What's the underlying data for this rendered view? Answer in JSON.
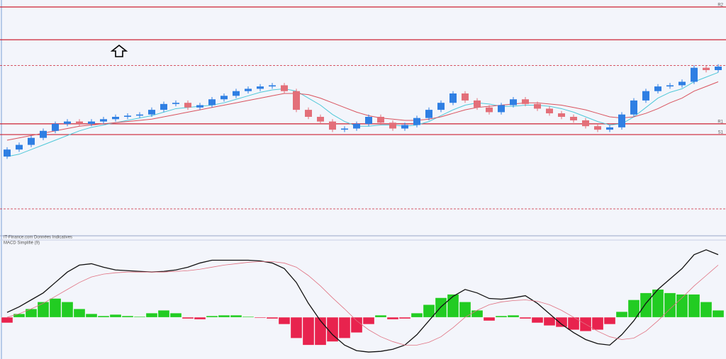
{
  "chart_data": [
    {
      "type": "candlestick",
      "open": [
        33,
        36,
        38,
        41,
        44,
        47,
        48,
        47,
        48,
        49,
        50,
        50.5,
        51,
        53,
        55.5,
        56,
        54,
        55,
        57.5,
        59,
        61,
        62,
        63,
        63.5,
        61,
        53,
        50,
        48,
        44.5,
        45,
        47,
        50,
        47.5,
        45,
        46.5,
        49.5,
        53,
        56,
        60,
        57,
        54,
        52,
        55,
        57.5,
        55.5,
        53.5,
        51.5,
        50,
        48.5,
        46,
        44.5,
        45.5,
        51,
        57,
        61,
        63,
        63.5,
        65,
        71,
        70
      ],
      "close": [
        36,
        38,
        41,
        44,
        47,
        48,
        47,
        48,
        49,
        50,
        50.5,
        51,
        53,
        55.5,
        56,
        54,
        55,
        57.5,
        59,
        61,
        62,
        63,
        63.5,
        61,
        53,
        50,
        48,
        44.5,
        45,
        47,
        50,
        47.5,
        45,
        46.5,
        49.5,
        53,
        56,
        60,
        57,
        54,
        52,
        55,
        57.5,
        55.5,
        53.5,
        51.5,
        50,
        48.5,
        46,
        44.5,
        45.5,
        51,
        57,
        61,
        63,
        63.5,
        65,
        71,
        70,
        71.5
      ],
      "high": [
        37,
        39,
        42,
        45,
        48,
        49,
        49,
        49,
        50,
        51,
        51.5,
        52,
        54,
        56.5,
        57,
        57,
        56,
        58.5,
        60,
        62,
        63,
        64,
        64.5,
        64.5,
        62,
        54,
        51,
        49,
        46,
        48,
        51,
        51,
        48.5,
        47.5,
        50.5,
        54,
        57,
        61,
        61,
        58,
        55,
        56,
        58.5,
        58.5,
        56.5,
        54.5,
        52.5,
        51,
        49.5,
        47,
        46.5,
        52,
        58,
        62,
        64,
        64.5,
        66,
        72,
        72,
        72.5
      ],
      "low": [
        32,
        35,
        37,
        40,
        43,
        46,
        46,
        46,
        47,
        48,
        49,
        49.5,
        50,
        52,
        54.5,
        53,
        53,
        54,
        56.5,
        58,
        60,
        61,
        62,
        60,
        52,
        49,
        47,
        43.5,
        43.5,
        44,
        46,
        46.5,
        44,
        44,
        45.5,
        48.5,
        52,
        55,
        56,
        53,
        51,
        51,
        54,
        54.5,
        52.5,
        50.5,
        49,
        47.5,
        45,
        43.5,
        43.5,
        44.5,
        50,
        56,
        60,
        62,
        62.5,
        64,
        69,
        69
      ],
      "up_color": "#2f7fe3",
      "down_color": "#e36f79",
      "overlays": [
        {
          "color": "#4fc8d8",
          "values": [
            33,
            34,
            36,
            38,
            40,
            42,
            44,
            45.5,
            46.5,
            47.5,
            48.5,
            49.5,
            50.5,
            52,
            53.5,
            54,
            54.5,
            55,
            56,
            57.5,
            59,
            60.5,
            61.5,
            62,
            61,
            58,
            55,
            51,
            48,
            46,
            46,
            46.5,
            46.5,
            46,
            46.5,
            48,
            50.5,
            53,
            55,
            56,
            55.5,
            54.5,
            54.5,
            55,
            55,
            54.5,
            53.5,
            52,
            50,
            48,
            46.5,
            47,
            50,
            54,
            58,
            60.5,
            62,
            65,
            67,
            69
          ]
        },
        {
          "color": "#d9535e",
          "values": [
            40,
            41,
            42,
            43,
            44,
            45,
            46,
            46.5,
            47,
            47.5,
            48,
            48.5,
            49,
            50,
            51,
            52,
            53,
            54,
            55,
            56,
            57,
            58,
            59,
            60,
            60,
            59.5,
            58,
            56,
            54,
            52,
            50.5,
            49.5,
            49,
            48.5,
            48.5,
            49,
            50,
            51.5,
            53,
            54,
            54.5,
            55,
            55.5,
            56,
            56,
            55.5,
            55,
            54,
            53,
            51.5,
            50,
            49.5,
            50,
            51.5,
            53.5,
            56,
            58,
            61,
            63,
            65
          ]
        }
      ],
      "levels": [
        97,
        83,
        72,
        47,
        42.4,
        10.6
      ],
      "level_labels": [
        "R2",
        null,
        null,
        "R1",
        "S1",
        null
      ],
      "level_styles": [
        "solid",
        "solid",
        "dashed",
        "solid",
        "solid",
        "dashed"
      ],
      "level_color": "#cc2233",
      "ylim": [
        0,
        100
      ],
      "source": "IT-Finance.com Données Indicatives"
    },
    {
      "type": "macd",
      "title": "MACD Simplifié (9)",
      "histogram": [
        -8,
        5,
        12,
        22,
        27,
        22,
        12,
        5,
        2,
        4,
        2,
        1,
        6,
        10,
        6,
        -2,
        -3,
        2,
        3,
        3,
        1,
        -1,
        -2,
        -10,
        -30,
        -40,
        -40,
        -35,
        -30,
        -22,
        -10,
        3,
        -3,
        -2,
        6,
        18,
        28,
        33,
        22,
        10,
        -5,
        2,
        3,
        -2,
        -8,
        -12,
        -14,
        -18,
        -20,
        -18,
        -10,
        8,
        25,
        35,
        40,
        35,
        33,
        33,
        22,
        10
      ],
      "positive_color": "#22cc22",
      "negative_color": "#e8234e",
      "series": [
        {
          "color": "#111111",
          "values": [
            7,
            15,
            25,
            35,
            50,
            65,
            75,
            77,
            72,
            68,
            67,
            66,
            65,
            66,
            68,
            72,
            78,
            82,
            82,
            82,
            82,
            81,
            78,
            70,
            50,
            20,
            -5,
            -25,
            -40,
            -48,
            -50,
            -49,
            -46,
            -40,
            -25,
            -5,
            15,
            30,
            40,
            35,
            27,
            26,
            28,
            31,
            20,
            5,
            -10,
            -22,
            -32,
            -38,
            -40,
            -25,
            -5,
            20,
            40,
            55,
            70,
            90,
            97,
            90
          ]
        },
        {
          "color": "#e07080",
          "values": [
            0,
            5,
            12,
            20,
            30,
            40,
            50,
            58,
            62,
            64,
            65,
            65,
            65,
            65,
            66,
            67,
            69,
            72,
            75,
            77,
            79,
            80,
            80,
            78,
            72,
            60,
            45,
            28,
            12,
            -5,
            -18,
            -28,
            -35,
            -40,
            -40,
            -36,
            -28,
            -15,
            0,
            10,
            18,
            22,
            24,
            25,
            23,
            18,
            10,
            0,
            -10,
            -20,
            -28,
            -32,
            -30,
            -20,
            -5,
            12,
            28,
            45,
            60,
            75
          ]
        }
      ],
      "ylim": [
        -60,
        110
      ]
    }
  ]
}
